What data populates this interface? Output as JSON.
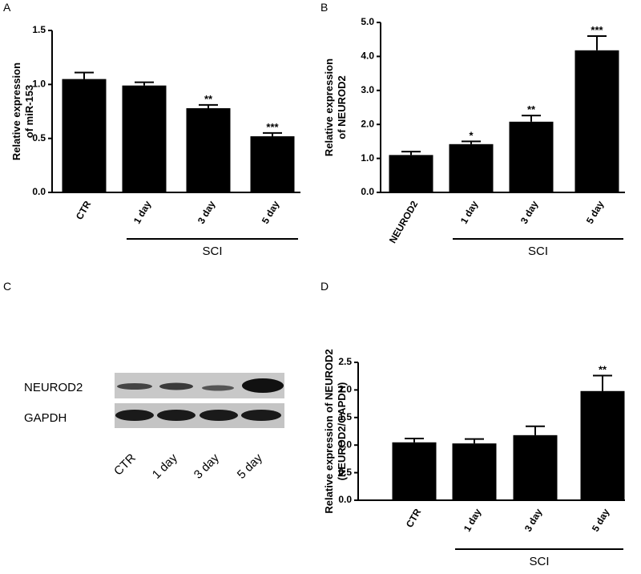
{
  "chart_data": [
    {
      "type": "bar",
      "label": "A",
      "ylabel": [
        "Relative expression",
        "of miR-153"
      ],
      "categories": [
        "CTR",
        "1 day",
        "3 day",
        "5 day"
      ],
      "values": [
        1.05,
        0.99,
        0.78,
        0.52
      ],
      "errors": [
        0.06,
        0.03,
        0.03,
        0.03
      ],
      "annotations": [
        null,
        null,
        "**",
        "***"
      ],
      "group_label": "SCI",
      "color": "#000000",
      "ylim": [
        0,
        1.5
      ],
      "yticks": [
        {
          "value": 0,
          "label": "0.0"
        },
        {
          "value": 0.5,
          "label": "0.5"
        },
        {
          "value": 1,
          "label": "1.0"
        },
        {
          "value": 1.5,
          "label": "1.5"
        }
      ]
    },
    {
      "type": "bar",
      "label": "B",
      "ylabel": [
        "Relative expression",
        "of NEUROD2"
      ],
      "categories": [
        "NEUROD2",
        "1 day",
        "3 day",
        "5 day"
      ],
      "values": [
        1.1,
        1.42,
        2.08,
        4.18
      ],
      "errors": [
        0.1,
        0.08,
        0.18,
        0.42
      ],
      "annotations": [
        null,
        "*",
        "**",
        "***"
      ],
      "group_label": "SCI",
      "color": "#000000",
      "ylim": [
        0,
        5
      ],
      "yticks": [
        {
          "value": 0,
          "label": "0.0"
        },
        {
          "value": 1,
          "label": "1.0"
        },
        {
          "value": 2,
          "label": "2.0"
        },
        {
          "value": 3,
          "label": "3.0"
        },
        {
          "value": 4,
          "label": "4.0"
        },
        {
          "value": 5,
          "label": "5.0"
        }
      ]
    },
    {
      "type": "bar",
      "label": "D",
      "ylabel": [
        "Relative expression of NEUROD2",
        "(NEUROD2/GAPDH)"
      ],
      "categories": [
        "CTR",
        "1 day",
        "3 day",
        "5 day"
      ],
      "values": [
        1.05,
        1.03,
        1.18,
        1.98
      ],
      "errors": [
        0.07,
        0.08,
        0.16,
        0.28
      ],
      "annotations": [
        null,
        null,
        null,
        "**"
      ],
      "group_label": "SCI",
      "color": "#000000",
      "ylim": [
        0,
        2.5
      ],
      "yticks": [
        {
          "value": 0,
          "label": "0.0"
        },
        {
          "value": 0.5,
          "label": "0.5"
        },
        {
          "value": 1,
          "label": "1.0"
        },
        {
          "value": 1.5,
          "label": "1.5"
        },
        {
          "value": 2,
          "label": "2.0"
        },
        {
          "value": 2.5,
          "label": "2.5"
        }
      ]
    }
  ],
  "blot": {
    "label": "C",
    "rows": [
      "NEUROD2",
      "GAPDH"
    ],
    "lanes": [
      "CTR",
      "1 day",
      "3 day",
      "5 day"
    ]
  }
}
